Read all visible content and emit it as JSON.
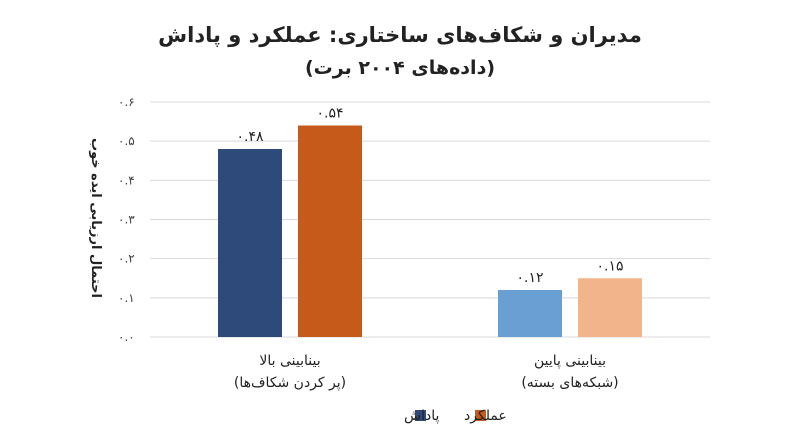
{
  "chart_data": {
    "type": "bar",
    "title": "مدیران و شکاف‌های ساختاری: عملکرد و پاداش",
    "subtitle": "(داده‌های ۲۰۰۴ برت)",
    "ylabel": "احتمال ارزیابی ایده خوب",
    "xlabel": "",
    "ylim": [
      0,
      0.6
    ],
    "yticks": [
      "۰.۰",
      "۰.۱",
      "۰.۲",
      "۰.۳",
      "۰.۴",
      "۰.۵",
      "۰.۶"
    ],
    "categories": [
      {
        "line1": "بینابینی بالا",
        "line2": "(پر کردن شکاف‌ها)"
      },
      {
        "line1": "بینابینی پایین",
        "line2": "(شبکه‌های بسته)"
      }
    ],
    "series": [
      {
        "name": "پاداش",
        "values": [
          0.48,
          0.12
        ],
        "labels": [
          "۰.۴۸",
          "۰.۱۲"
        ],
        "colors": [
          "#2e4a7a",
          "#6a9fd4"
        ]
      },
      {
        "name": "عملکرد",
        "values": [
          0.54,
          0.15
        ],
        "labels": [
          "۰.۵۴",
          "۰.۱۵"
        ],
        "colors": [
          "#c55a1b",
          "#f2b48a"
        ]
      }
    ],
    "grid": true,
    "legend_position": "bottom"
  }
}
